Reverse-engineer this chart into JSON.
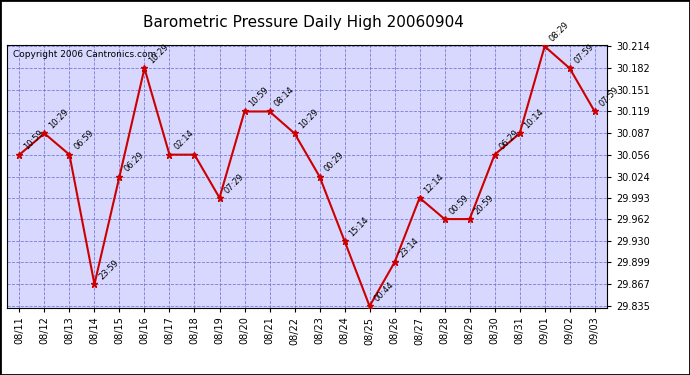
{
  "title": "Barometric Pressure Daily High 20060904",
  "copyright": "Copyright 2006 Cantronics.com",
  "x_labels": [
    "08/11",
    "08/12",
    "08/13",
    "08/14",
    "08/15",
    "08/16",
    "08/17",
    "08/18",
    "08/19",
    "08/20",
    "08/21",
    "08/22",
    "08/23",
    "08/24",
    "08/25",
    "08/26",
    "08/27",
    "08/28",
    "08/29",
    "08/30",
    "08/31",
    "09/01",
    "09/02",
    "09/03"
  ],
  "data_points": [
    {
      "date": "08/11",
      "value": 30.056,
      "label": "10:59"
    },
    {
      "date": "08/12",
      "value": 30.087,
      "label": "10:29"
    },
    {
      "date": "08/13",
      "value": 30.056,
      "label": "06:59"
    },
    {
      "date": "08/14",
      "value": 29.867,
      "label": "23:59"
    },
    {
      "date": "08/15",
      "value": 30.024,
      "label": "06:29"
    },
    {
      "date": "08/16",
      "value": 30.182,
      "label": "10:29"
    },
    {
      "date": "08/17",
      "value": 30.056,
      "label": "02:14"
    },
    {
      "date": "08/18",
      "value": 30.056,
      "label": ""
    },
    {
      "date": "08/19",
      "value": 29.993,
      "label": "07:29"
    },
    {
      "date": "08/20",
      "value": 30.119,
      "label": "10:59"
    },
    {
      "date": "08/21",
      "value": 30.119,
      "label": "08:14"
    },
    {
      "date": "08/22",
      "value": 30.087,
      "label": "10:29"
    },
    {
      "date": "08/23",
      "value": 30.024,
      "label": "00:29"
    },
    {
      "date": "08/24",
      "value": 29.93,
      "label": "15:14"
    },
    {
      "date": "08/25",
      "value": 29.835,
      "label": "00:44"
    },
    {
      "date": "08/26",
      "value": 29.899,
      "label": "23:14"
    },
    {
      "date": "08/27",
      "value": 29.993,
      "label": "12:14"
    },
    {
      "date": "08/28",
      "value": 29.962,
      "label": "00:59"
    },
    {
      "date": "08/29",
      "value": 29.962,
      "label": "20:59"
    },
    {
      "date": "08/30",
      "value": 30.056,
      "label": "06:29"
    },
    {
      "date": "08/31",
      "value": 30.087,
      "label": "10:14"
    },
    {
      "date": "09/01",
      "value": 30.214,
      "label": "08:29"
    },
    {
      "date": "09/02",
      "value": 30.182,
      "label": "07:59"
    },
    {
      "date": "09/03",
      "value": 30.119,
      "label": "07:59"
    }
  ],
  "ylim_min": 29.835,
  "ylim_max": 30.214,
  "yticks": [
    29.835,
    29.867,
    29.899,
    29.93,
    29.962,
    29.993,
    30.024,
    30.056,
    30.087,
    30.119,
    30.151,
    30.182,
    30.214
  ],
  "line_color": "#cc0000",
  "marker_color": "#cc0000",
  "bg_color": "#d8d8ff",
  "grid_color": "#6666cc",
  "outer_bg": "#ffffff",
  "title_fontsize": 11,
  "label_fontsize": 7,
  "point_label_fontsize": 6,
  "copyright_fontsize": 6.5
}
